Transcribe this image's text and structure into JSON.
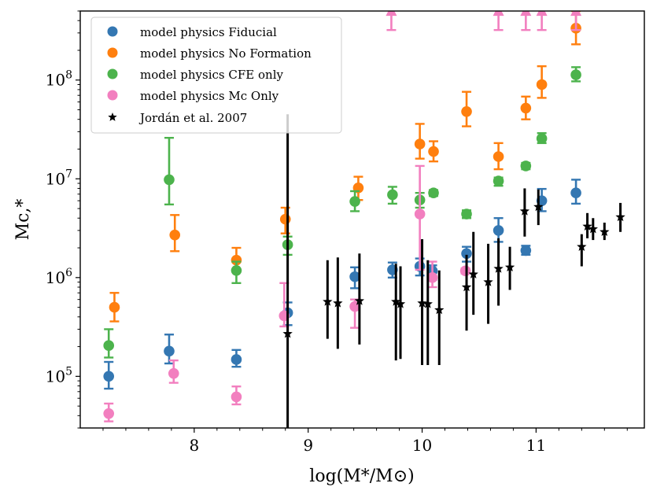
{
  "chart_data": {
    "type": "scatter",
    "xlabel": "log(M*/M⊙)",
    "ylabel": "Mc,*",
    "xscale": "linear",
    "yscale": "log",
    "xlim": [
      7.0,
      11.95
    ],
    "ylim": [
      30000,
      500000000
    ],
    "x_ticks": [
      {
        "value": 8,
        "label": "8"
      },
      {
        "value": 9,
        "label": "9"
      },
      {
        "value": 10,
        "label": "10"
      },
      {
        "value": 11,
        "label": "11"
      }
    ],
    "y_ticks": [
      {
        "value": 100000,
        "base": "10",
        "exp": "5"
      },
      {
        "value": 1000000,
        "base": "10",
        "exp": "6"
      },
      {
        "value": 10000000,
        "base": "10",
        "exp": "7"
      },
      {
        "value": 100000000,
        "base": "10",
        "exp": "8"
      }
    ],
    "legend_position": "top-left",
    "series": [
      {
        "name": "model physics Fiducial",
        "color": "#3477b2",
        "marker": "circle",
        "points": [
          {
            "x": 7.25,
            "y": 100000,
            "lo": 75000,
            "hi": 140000
          },
          {
            "x": 7.78,
            "y": 180000,
            "lo": 135000,
            "hi": 265000
          },
          {
            "x": 8.37,
            "y": 148000,
            "lo": 125000,
            "hi": 185000
          },
          {
            "x": 8.82,
            "y": 440000,
            "lo": 330000,
            "hi": 560000
          },
          {
            "x": 9.41,
            "y": 1020000,
            "lo": 780000,
            "hi": 1270000
          },
          {
            "x": 9.74,
            "y": 1200000,
            "lo": 1000000,
            "hi": 1420000
          },
          {
            "x": 9.98,
            "y": 1300000,
            "lo": 1050000,
            "hi": 1560000
          },
          {
            "x": 10.09,
            "y": 1170000,
            "lo": 950000,
            "hi": 1330000
          },
          {
            "x": 10.39,
            "y": 1750000,
            "lo": 1450000,
            "hi": 2050000
          },
          {
            "x": 10.67,
            "y": 3000000,
            "lo": 2300000,
            "hi": 4000000
          },
          {
            "x": 10.91,
            "y": 1880000,
            "lo": 1700000,
            "hi": 2100000
          },
          {
            "x": 11.05,
            "y": 6000000,
            "lo": 4700000,
            "hi": 7900000
          },
          {
            "x": 11.35,
            "y": 7200000,
            "lo": 5600000,
            "hi": 9800000
          }
        ]
      },
      {
        "name": "model physics No Formation",
        "color": "#ff7f0e",
        "marker": "circle",
        "points": [
          {
            "x": 7.3,
            "y": 500000,
            "lo": 360000,
            "hi": 700000
          },
          {
            "x": 7.83,
            "y": 2700000,
            "lo": 1850000,
            "hi": 4300000
          },
          {
            "x": 8.37,
            "y": 1500000,
            "lo": 1200000,
            "hi": 2000000
          },
          {
            "x": 8.8,
            "y": 3900000,
            "lo": 2800000,
            "hi": 5100000
          },
          {
            "x": 9.44,
            "y": 8100000,
            "lo": 6100000,
            "hi": 10500000
          },
          {
            "x": 9.98,
            "y": 22500000,
            "lo": 16000000,
            "hi": 36000000
          },
          {
            "x": 10.1,
            "y": 18900000,
            "lo": 15000000,
            "hi": 24000000
          },
          {
            "x": 10.39,
            "y": 48000000,
            "lo": 34000000,
            "hi": 76000000
          },
          {
            "x": 10.67,
            "y": 16800000,
            "lo": 12500000,
            "hi": 23000000
          },
          {
            "x": 10.91,
            "y": 52000000,
            "lo": 40000000,
            "hi": 68000000
          },
          {
            "x": 11.05,
            "y": 90000000,
            "lo": 66000000,
            "hi": 138000000
          },
          {
            "x": 11.35,
            "y": 335000000,
            "lo": 230000000,
            "hi": 500000000
          }
        ]
      },
      {
        "name": "model physics CFE only",
        "color": "#4cb34c",
        "marker": "circle",
        "points": [
          {
            "x": 7.25,
            "y": 205000,
            "lo": 155000,
            "hi": 300000
          },
          {
            "x": 7.78,
            "y": 9800000,
            "lo": 5500000,
            "hi": 26000000
          },
          {
            "x": 8.37,
            "y": 1180000,
            "lo": 880000,
            "hi": 1450000
          },
          {
            "x": 8.82,
            "y": 2150000,
            "lo": 1700000,
            "hi": 2600000
          },
          {
            "x": 9.41,
            "y": 5900000,
            "lo": 4700000,
            "hi": 7500000
          },
          {
            "x": 9.74,
            "y": 6900000,
            "lo": 5600000,
            "hi": 8300000
          },
          {
            "x": 9.98,
            "y": 6100000,
            "lo": 5100000,
            "hi": 7200000
          },
          {
            "x": 10.1,
            "y": 7200000,
            "lo": 6700000,
            "hi": 7700000
          },
          {
            "x": 10.39,
            "y": 4400000,
            "lo": 4000000,
            "hi": 4800000
          },
          {
            "x": 10.67,
            "y": 9500000,
            "lo": 8500000,
            "hi": 10300000
          },
          {
            "x": 10.91,
            "y": 13500000,
            "lo": 12500000,
            "hi": 14500000
          },
          {
            "x": 11.05,
            "y": 25600000,
            "lo": 23000000,
            "hi": 29000000
          },
          {
            "x": 11.35,
            "y": 113000000,
            "lo": 97000000,
            "hi": 135000000
          }
        ]
      },
      {
        "name": "model physics Mc Only",
        "color": "#f27fbf",
        "marker": "circle",
        "points": [
          {
            "x": 7.25,
            "y": 42000,
            "lo": 35000,
            "hi": 53000
          },
          {
            "x": 7.82,
            "y": 107000,
            "lo": 86000,
            "hi": 145000
          },
          {
            "x": 8.37,
            "y": 62000,
            "lo": 52000,
            "hi": 79000
          },
          {
            "x": 8.79,
            "y": 410000,
            "lo": 320000,
            "hi": 880000
          },
          {
            "x": 9.41,
            "y": 510000,
            "lo": 310000,
            "hi": 600000
          },
          {
            "x": 9.98,
            "y": 4400000,
            "lo": 1200000,
            "hi": 13500000
          },
          {
            "x": 10.09,
            "y": 1000000,
            "lo": 800000,
            "hi": 1450000
          },
          {
            "x": 10.38,
            "y": 1170000,
            "lo": 1100000,
            "hi": 1240000
          }
        ],
        "lower_limits": [
          {
            "x": 9.73,
            "y": 400000000
          },
          {
            "x": 10.67,
            "y": 400000000
          },
          {
            "x": 10.91,
            "y": 400000000
          },
          {
            "x": 11.05,
            "y": 400000000
          },
          {
            "x": 11.35,
            "y": 400000000
          }
        ]
      },
      {
        "name": "Jordán et al. 2007",
        "color": "#000000",
        "marker": "star",
        "points": [
          {
            "x": 8.82,
            "y": 270000,
            "lo": 30000,
            "hi": 45000000
          },
          {
            "x": 9.17,
            "y": 570000,
            "lo": 240000,
            "hi": 1500000
          },
          {
            "x": 9.26,
            "y": 550000,
            "lo": 190000,
            "hi": 1600000
          },
          {
            "x": 9.45,
            "y": 580000,
            "lo": 210000,
            "hi": 1750000
          },
          {
            "x": 9.77,
            "y": 570000,
            "lo": 145000,
            "hi": 1380000
          },
          {
            "x": 9.81,
            "y": 540000,
            "lo": 150000,
            "hi": 1300000
          },
          {
            "x": 10.0,
            "y": 550000,
            "lo": 130000,
            "hi": 2450000
          },
          {
            "x": 10.05,
            "y": 540000,
            "lo": 130000,
            "hi": 1500000
          },
          {
            "x": 10.15,
            "y": 470000,
            "lo": 130000,
            "hi": 1180000
          },
          {
            "x": 10.39,
            "y": 800000,
            "lo": 290000,
            "hi": 1700000
          },
          {
            "x": 10.45,
            "y": 1080000,
            "lo": 420000,
            "hi": 2900000
          },
          {
            "x": 10.58,
            "y": 900000,
            "lo": 340000,
            "hi": 2200000
          },
          {
            "x": 10.67,
            "y": 1230000,
            "lo": 520000,
            "hi": 2500000
          },
          {
            "x": 10.77,
            "y": 1270000,
            "lo": 750000,
            "hi": 2050000
          },
          {
            "x": 10.9,
            "y": 4700000,
            "lo": 2600000,
            "hi": 8000000
          },
          {
            "x": 11.02,
            "y": 5200000,
            "lo": 3400000,
            "hi": 7800000
          },
          {
            "x": 11.4,
            "y": 2050000,
            "lo": 1300000,
            "hi": 2750000
          },
          {
            "x": 11.45,
            "y": 3300000,
            "lo": 2500000,
            "hi": 4500000
          },
          {
            "x": 11.5,
            "y": 3100000,
            "lo": 2400000,
            "hi": 4000000
          },
          {
            "x": 11.6,
            "y": 2900000,
            "lo": 2400000,
            "hi": 3600000
          },
          {
            "x": 11.74,
            "y": 4100000,
            "lo": 2900000,
            "hi": 5700000
          }
        ]
      }
    ]
  }
}
